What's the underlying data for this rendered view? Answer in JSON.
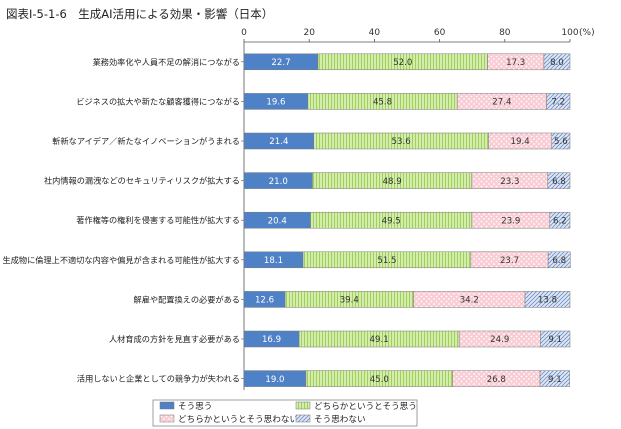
{
  "chart_data": {
    "type": "bar",
    "orientation": "horizontal",
    "stacked": true,
    "title": "図表Ⅰ-5-1-6　生成AI活用による効果・影響（日本）",
    "unit_label": "(%)",
    "xlim": [
      0,
      100
    ],
    "xticks": [
      "0",
      "20",
      "40",
      "60",
      "80",
      "100"
    ],
    "grid": false,
    "legend_position": "bottom",
    "categories": [
      "業務効率化や人員不足の解消につながる",
      "ビジネスの拡大や新たな顧客獲得につながる",
      "斬新なアイデア／新たなイノベーションがうまれる",
      "社内情報の漏洩などのセキュリティリスクが拡大する",
      "著作権等の権利を侵害する可能性が拡大する",
      "生成物に倫理上不適切な内容や偏見が含まれる可能性が拡大する",
      "解雇や配置換えの必要がある",
      "人材育成の方針を見直す必要がある",
      "活用しないと企業としての競争力が失われる"
    ],
    "series": [
      {
        "name": "そう思う",
        "color": "#4f81c7",
        "values": [
          22.7,
          19.6,
          21.4,
          21.0,
          20.4,
          18.1,
          12.6,
          16.9,
          19.0
        ]
      },
      {
        "name": "どちらかというとそう思う",
        "color": "#c6e59a",
        "values": [
          52.0,
          45.8,
          53.6,
          48.9,
          49.5,
          51.5,
          39.4,
          49.1,
          45.0
        ]
      },
      {
        "name": "どちらかというとそう思わない",
        "color": "#f7c3cd",
        "values": [
          17.3,
          27.4,
          19.4,
          23.3,
          23.9,
          23.7,
          34.2,
          24.9,
          26.8
        ]
      },
      {
        "name": "そう思わない",
        "color": "#c9d5ea",
        "values": [
          8.0,
          7.2,
          5.6,
          6.8,
          6.2,
          6.8,
          13.8,
          9.1,
          9.1
        ]
      }
    ]
  }
}
